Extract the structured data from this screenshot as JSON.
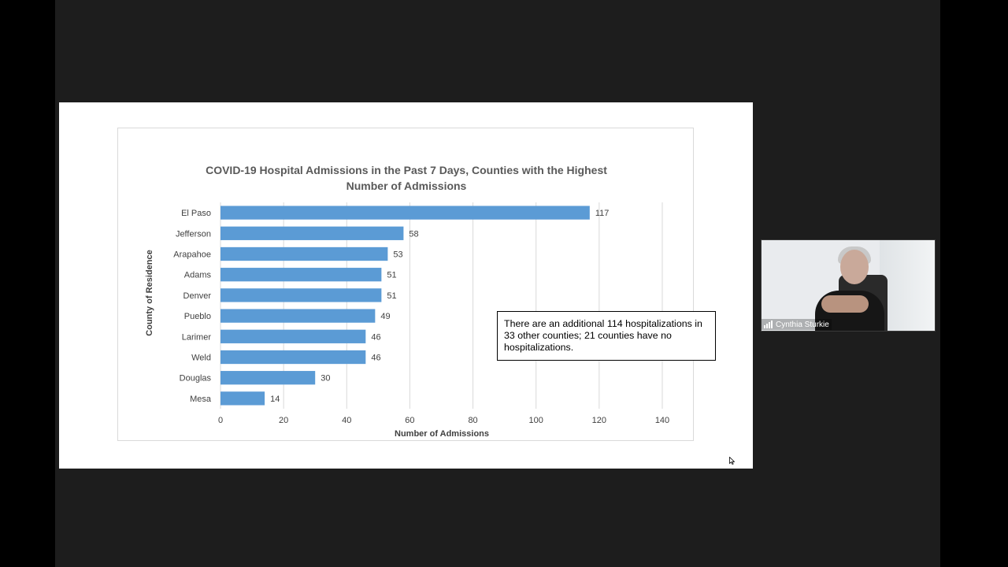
{
  "slide": {
    "note": "There are an additional 114 hospitalizations in 33 other counties; 21 counties have no hospitalizations."
  },
  "participant": {
    "name": "Cynthia Sturkie"
  },
  "colors": {
    "bar": "#5b9bd5",
    "background": "#1d1d1d",
    "slide": "#ffffff"
  },
  "icons": {
    "signal": "signal-strength-icon",
    "cursor": "mouse-pointer-icon"
  },
  "chart_data": {
    "type": "bar",
    "orientation": "horizontal",
    "title_line1": "COVID-19 Hospital Admissions in the Past 7 Days, Counties with the Highest",
    "title_line2": "Number of Admissions",
    "xlabel": "Number of Admissions",
    "ylabel": "County of Residence",
    "categories": [
      "El Paso",
      "Jefferson",
      "Arapahoe",
      "Adams",
      "Denver",
      "Pueblo",
      "Larimer",
      "Weld",
      "Douglas",
      "Mesa"
    ],
    "values": [
      117,
      58,
      53,
      51,
      51,
      49,
      46,
      46,
      30,
      14
    ],
    "xlim": [
      0,
      140
    ],
    "xticks": [
      0,
      20,
      40,
      60,
      80,
      100,
      120,
      140
    ],
    "grid": true,
    "legend": false
  }
}
